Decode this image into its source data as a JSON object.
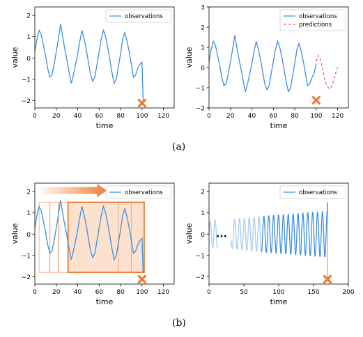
{
  "captions": {
    "a": "(a)",
    "b": "(b)"
  },
  "colors": {
    "observations": "#3d8fe0",
    "observations_faded": "#a9cdf2",
    "predictions": "#ee5fa0",
    "marker": "#ee7a30",
    "window_fill": "#fbdcc6",
    "window_edge": "#ee7a30",
    "arrow": "#ee7a30"
  },
  "chart_data": [
    {
      "type": "line",
      "panel": "a-left",
      "xlabel": "time",
      "ylabel": "value",
      "xlim": [
        0,
        130
      ],
      "ylim": [
        -2.35,
        2.4
      ],
      "xticks": [
        0,
        20,
        40,
        60,
        80,
        100,
        120
      ],
      "yticks": [
        -2,
        -1,
        0,
        1,
        2
      ],
      "legend": {
        "placement": "top-right",
        "entries": [
          "observations"
        ]
      },
      "series": [
        {
          "name": "observations",
          "style": "solid",
          "x": [
            0,
            2,
            4,
            6,
            8,
            10,
            12,
            14,
            16,
            18,
            20,
            22,
            24,
            26,
            28,
            30,
            32,
            34,
            36,
            38,
            40,
            42,
            44,
            46,
            48,
            50,
            52,
            54,
            56,
            58,
            60,
            62,
            64,
            66,
            68,
            70,
            72,
            74,
            76,
            78,
            80,
            82,
            84,
            86,
            88,
            90,
            92,
            94,
            96,
            98,
            100,
            101
          ],
          "y": [
            0.3,
            0.9,
            1.3,
            1.1,
            0.6,
            0.1,
            -0.5,
            -0.9,
            -0.8,
            -0.3,
            0.3,
            0.9,
            1.6,
            1.0,
            0.4,
            -0.1,
            -0.7,
            -1.2,
            -0.8,
            -0.3,
            0.2,
            0.8,
            1.3,
            0.9,
            0.4,
            -0.2,
            -0.8,
            -1.1,
            -0.9,
            -0.3,
            0.3,
            0.9,
            1.3,
            1.0,
            0.5,
            -0.1,
            -0.7,
            -1.2,
            -1.0,
            -0.4,
            0.2,
            0.9,
            1.2,
            0.8,
            0.3,
            -0.3,
            -0.9,
            -0.8,
            -0.5,
            -0.3,
            -0.2,
            -2.0
          ]
        }
      ],
      "markers": [
        {
          "x": 100,
          "y": -2.12,
          "shape": "x"
        }
      ]
    },
    {
      "type": "line",
      "panel": "a-right",
      "xlabel": "time",
      "ylabel": "value",
      "xlim": [
        0,
        130
      ],
      "ylim": [
        -2.0,
        3.0
      ],
      "xticks": [
        0,
        20,
        40,
        60,
        80,
        100,
        120
      ],
      "yticks": [
        -2,
        -1,
        0,
        1,
        2,
        3
      ],
      "legend": {
        "placement": "top-right",
        "entries": [
          "observations",
          "predictions"
        ]
      },
      "series": [
        {
          "name": "observations",
          "style": "solid",
          "x": [
            0,
            2,
            4,
            6,
            8,
            10,
            12,
            14,
            16,
            18,
            20,
            22,
            24,
            26,
            28,
            30,
            32,
            34,
            36,
            38,
            40,
            42,
            44,
            46,
            48,
            50,
            52,
            54,
            56,
            58,
            60,
            62,
            64,
            66,
            68,
            70,
            72,
            74,
            76,
            78,
            80,
            82,
            84,
            86,
            88,
            90,
            92,
            94,
            96,
            98,
            100
          ],
          "y": [
            0.3,
            0.9,
            1.3,
            1.1,
            0.6,
            0.1,
            -0.5,
            -0.9,
            -0.8,
            -0.3,
            0.3,
            0.9,
            1.6,
            1.0,
            0.4,
            -0.1,
            -0.7,
            -1.2,
            -0.8,
            -0.3,
            0.2,
            0.8,
            1.3,
            0.9,
            0.4,
            -0.2,
            -0.8,
            -1.1,
            -0.9,
            -0.3,
            0.3,
            0.9,
            1.3,
            1.0,
            0.5,
            -0.1,
            -0.7,
            -1.2,
            -1.0,
            -0.4,
            0.2,
            0.9,
            1.2,
            0.8,
            0.3,
            -0.3,
            -0.9,
            -0.8,
            -0.5,
            -0.3,
            0.2
          ]
        },
        {
          "name": "predictions",
          "style": "dashed",
          "x": [
            100,
            102,
            104,
            106,
            108,
            110,
            112,
            114,
            116,
            118,
            120
          ],
          "y": [
            0.3,
            0.6,
            0.4,
            -0.1,
            -0.6,
            -0.9,
            -1.05,
            -1.0,
            -0.7,
            -0.3,
            0.0
          ]
        }
      ],
      "markers": [
        {
          "x": 100,
          "y": -1.62,
          "shape": "x"
        }
      ]
    },
    {
      "type": "line",
      "panel": "b-left",
      "xlabel": "time",
      "ylabel": "value",
      "xlim": [
        0,
        130
      ],
      "ylim": [
        -2.35,
        2.4
      ],
      "xticks": [
        0,
        20,
        40,
        60,
        80,
        100,
        120
      ],
      "yticks": [
        -2,
        -1,
        0,
        1,
        2
      ],
      "legend": {
        "placement": "top-right",
        "entries": [
          "observations"
        ]
      },
      "series": [
        {
          "name": "observations",
          "style": "solid",
          "x": [
            0,
            2,
            4,
            6,
            8,
            10,
            12,
            14,
            16,
            18,
            20,
            22,
            24,
            26,
            28,
            30,
            32,
            34,
            36,
            38,
            40,
            42,
            44,
            46,
            48,
            50,
            52,
            54,
            56,
            58,
            60,
            62,
            64,
            66,
            68,
            70,
            72,
            74,
            76,
            78,
            80,
            82,
            84,
            86,
            88,
            90,
            92,
            94,
            96,
            98,
            100,
            101
          ],
          "y": [
            0.3,
            0.9,
            1.3,
            1.1,
            0.6,
            0.1,
            -0.5,
            -0.9,
            -0.8,
            -0.3,
            0.3,
            0.9,
            1.6,
            1.0,
            0.4,
            -0.1,
            -0.7,
            -1.2,
            -0.8,
            -0.3,
            0.2,
            0.8,
            1.3,
            0.9,
            0.4,
            -0.2,
            -0.8,
            -1.1,
            -0.9,
            -0.3,
            0.3,
            0.9,
            1.3,
            1.0,
            0.5,
            -0.1,
            -0.7,
            -1.2,
            -1.0,
            -0.4,
            0.2,
            0.9,
            1.2,
            0.8,
            0.3,
            -0.3,
            -0.9,
            -0.8,
            -0.5,
            -0.3,
            -0.2,
            -1.8
          ]
        }
      ],
      "windows": [
        {
          "x0": 4,
          "x1": 14,
          "emphasis": "faded"
        },
        {
          "x0": 14,
          "x1": 22,
          "emphasis": "faded"
        },
        {
          "x0": 22,
          "x1": 31,
          "emphasis": "faded"
        },
        {
          "x0": 31,
          "x1": 102,
          "emphasis": "current"
        },
        {
          "x0": 78,
          "x1": 102,
          "emphasis": "faded"
        },
        {
          "x0": 90,
          "x1": 102,
          "emphasis": "faded"
        }
      ],
      "window_ylim": [
        -1.8,
        1.5
      ],
      "arrow": {
        "x0": 5,
        "x1": 67,
        "y": 2.05
      },
      "markers": [
        {
          "x": 100,
          "y": -2.12,
          "shape": "x"
        }
      ]
    },
    {
      "type": "line",
      "panel": "b-right",
      "xlabel": "time",
      "ylabel": "value",
      "xlim": [
        0,
        200
      ],
      "ylim": [
        -2.35,
        2.4
      ],
      "xticks": [
        0,
        50,
        100,
        150,
        200
      ],
      "yticks": [
        -2,
        -1,
        0,
        1,
        2
      ],
      "legend": {
        "placement": "top-right",
        "entries": [
          "observations"
        ]
      },
      "ellipsis": {
        "x": 18,
        "y": 0,
        "text": "..."
      },
      "series": [
        {
          "name": "observations",
          "style": "solid",
          "segments": [
            {
              "x0": 0,
              "x1": 12,
              "period": 7,
              "amp0": 0.6,
              "amp1": 0.7,
              "emphasis": "faded"
            },
            {
              "x0": 32,
              "x1": 75,
              "period": 7,
              "amp0": 0.7,
              "amp1": 0.85,
              "emphasis": "faded"
            },
            {
              "x0": 75,
              "x1": 170,
              "period": 7,
              "amp0": 0.85,
              "amp1": 1.1,
              "emphasis": "current"
            }
          ],
          "end": {
            "x": 170,
            "y": 1.5
          }
        }
      ],
      "markers": [
        {
          "x": 170,
          "y": -2.12,
          "shape": "x"
        }
      ]
    }
  ]
}
